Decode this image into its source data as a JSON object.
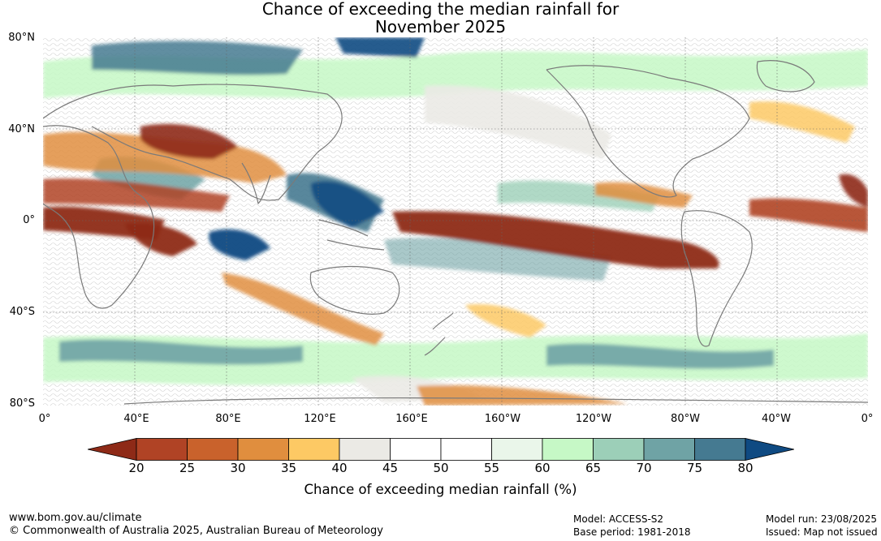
{
  "title": {
    "line1": "Chance of exceeding the median rainfall for",
    "line2": "November 2025"
  },
  "map": {
    "lat_labels": [
      "80°N",
      "40°N",
      "0°",
      "40°S",
      "80°S"
    ],
    "lon_labels": [
      "0°",
      "40°E",
      "80°E",
      "120°E",
      "160°E",
      "160°W",
      "120°W",
      "80°W",
      "40°W",
      "0°"
    ],
    "lat_range": [
      -80,
      80
    ],
    "lon_range": [
      0,
      360
    ],
    "gridlines": true
  },
  "colorbar": {
    "ticks": [
      "20",
      "25",
      "30",
      "35",
      "40",
      "45",
      "50",
      "55",
      "60",
      "65",
      "70",
      "75",
      "80"
    ],
    "colors": [
      "#8e2a17",
      "#b04325",
      "#c9622c",
      "#e08e3e",
      "#fdc964",
      "#ebeae5",
      "#ffffff",
      "#ffffff",
      "#eaf6ea",
      "#c6f8c6",
      "#9ccfb8",
      "#6fa3a5",
      "#457a91",
      "#0f4a82"
    ],
    "label": "Chance of exceeding median rainfall (%)"
  },
  "footer": {
    "website": "www.bom.gov.au/climate",
    "copyright": "© Commonwealth of Australia 2025, Australian Bureau of Meteorology",
    "model": "Model: ACCESS-S2",
    "base_period": "Base period: 1981-2018",
    "model_run": "Model run: 23/08/2025",
    "issued": "Issued: Map not issued"
  }
}
